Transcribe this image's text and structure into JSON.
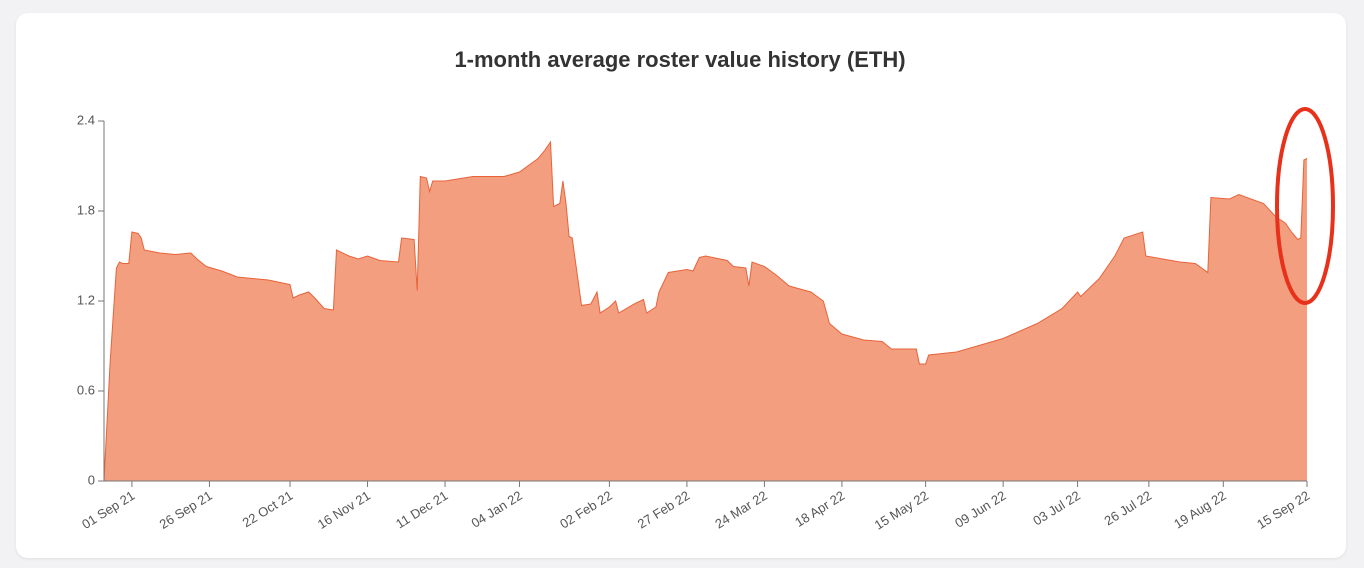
{
  "chart_data": {
    "type": "area",
    "title": "1-month average roster value history (ETH)",
    "x": [
      "2021-08-23",
      "2021-08-25",
      "2021-08-27",
      "2021-08-28",
      "2021-08-29",
      "2021-08-31",
      "2021-09-01",
      "2021-09-03",
      "2021-09-04",
      "2021-09-05",
      "2021-09-10",
      "2021-09-15",
      "2021-09-20",
      "2021-09-22",
      "2021-09-25",
      "2021-09-30",
      "2021-10-05",
      "2021-10-15",
      "2021-10-22",
      "2021-10-23",
      "2021-10-25",
      "2021-10-28",
      "2021-10-30",
      "2021-11-02",
      "2021-11-05",
      "2021-11-06",
      "2021-11-10",
      "2021-11-13",
      "2021-11-16",
      "2021-11-20",
      "2021-11-26",
      "2021-11-27",
      "2021-12-01",
      "2021-12-02",
      "2021-12-03",
      "2021-12-05",
      "2021-12-06",
      "2021-12-07",
      "2021-12-11",
      "2021-12-20",
      "2021-12-30",
      "2022-01-04",
      "2022-01-10",
      "2022-01-12",
      "2022-01-14",
      "2022-01-15",
      "2022-01-17",
      "2022-01-18",
      "2022-01-19",
      "2022-01-20",
      "2022-01-21",
      "2022-01-24",
      "2022-01-27",
      "2022-01-29",
      "2022-01-30",
      "2022-02-02",
      "2022-02-04",
      "2022-02-05",
      "2022-02-10",
      "2022-02-13",
      "2022-02-14",
      "2022-02-17",
      "2022-02-18",
      "2022-02-21",
      "2022-02-27",
      "2022-03-01",
      "2022-03-03",
      "2022-03-05",
      "2022-03-12",
      "2022-03-14",
      "2022-03-18",
      "2022-03-19",
      "2022-03-20",
      "2022-03-24",
      "2022-03-28",
      "2022-04-01",
      "2022-04-08",
      "2022-04-12",
      "2022-04-14",
      "2022-04-18",
      "2022-04-25",
      "2022-05-01",
      "2022-05-04",
      "2022-05-12",
      "2022-05-13",
      "2022-05-15",
      "2022-05-16",
      "2022-05-25",
      "2022-06-09",
      "2022-06-20",
      "2022-06-28",
      "2022-07-03",
      "2022-07-04",
      "2022-07-10",
      "2022-07-15",
      "2022-07-18",
      "2022-07-24",
      "2022-07-25",
      "2022-08-05",
      "2022-08-10",
      "2022-08-14",
      "2022-08-15",
      "2022-08-21",
      "2022-08-24",
      "2022-09-01",
      "2022-09-05",
      "2022-09-08",
      "2022-09-10",
      "2022-09-12",
      "2022-09-13",
      "2022-09-14",
      "2022-09-15"
    ],
    "values": [
      0,
      0.8,
      1.42,
      1.46,
      1.45,
      1.45,
      1.66,
      1.65,
      1.62,
      1.54,
      1.52,
      1.51,
      1.52,
      1.48,
      1.43,
      1.4,
      1.36,
      1.34,
      1.31,
      1.22,
      1.24,
      1.26,
      1.22,
      1.15,
      1.14,
      1.54,
      1.5,
      1.48,
      1.5,
      1.47,
      1.46,
      1.62,
      1.61,
      1.27,
      2.03,
      2.02,
      1.93,
      2.0,
      2.0,
      2.03,
      2.03,
      2.06,
      2.15,
      2.2,
      2.26,
      1.83,
      1.85,
      2.0,
      1.85,
      1.63,
      1.62,
      1.17,
      1.18,
      1.26,
      1.12,
      1.16,
      1.2,
      1.12,
      1.18,
      1.21,
      1.12,
      1.16,
      1.26,
      1.39,
      1.41,
      1.4,
      1.49,
      1.5,
      1.47,
      1.43,
      1.42,
      1.3,
      1.46,
      1.43,
      1.37,
      1.3,
      1.26,
      1.2,
      1.05,
      0.98,
      0.94,
      0.93,
      0.88,
      0.88,
      0.78,
      0.78,
      0.84,
      0.86,
      0.95,
      1.05,
      1.15,
      1.26,
      1.23,
      1.35,
      1.5,
      1.62,
      1.66,
      1.5,
      1.46,
      1.45,
      1.39,
      1.89,
      1.88,
      1.91,
      1.85,
      1.76,
      1.72,
      1.66,
      1.61,
      1.62,
      2.14,
      2.15
    ],
    "color": "#f29e7f",
    "line_color": "#e8633a",
    "xlim": [
      "2021-08-23",
      "2022-09-15"
    ],
    "xticks": [
      {
        "value": "2021-09-01",
        "label": "01 Sep 21"
      },
      {
        "value": "2021-09-26",
        "label": "26 Sep 21"
      },
      {
        "value": "2021-10-22",
        "label": "22 Oct 21"
      },
      {
        "value": "2021-11-16",
        "label": "16 Nov 21"
      },
      {
        "value": "2021-12-11",
        "label": "11 Dec 21"
      },
      {
        "value": "2022-01-04",
        "label": "04 Jan 22"
      },
      {
        "value": "2022-02-02",
        "label": "02 Feb 22"
      },
      {
        "value": "2022-02-27",
        "label": "27 Feb 22"
      },
      {
        "value": "2022-03-24",
        "label": "24 Mar 22"
      },
      {
        "value": "2022-04-18",
        "label": "18 Apr 22"
      },
      {
        "value": "2022-05-15",
        "label": "15 May 22"
      },
      {
        "value": "2022-06-09",
        "label": "09 Jun 22"
      },
      {
        "value": "2022-07-03",
        "label": "03 Jul 22"
      },
      {
        "value": "2022-07-26",
        "label": "26 Jul 22"
      },
      {
        "value": "2022-08-19",
        "label": "19 Aug 22"
      },
      {
        "value": "2022-09-15",
        "label": "15 Sep 22"
      }
    ],
    "ylim": [
      0,
      2.4
    ],
    "yticks": [
      0,
      0.6,
      1.2,
      1.8,
      2.4
    ]
  }
}
